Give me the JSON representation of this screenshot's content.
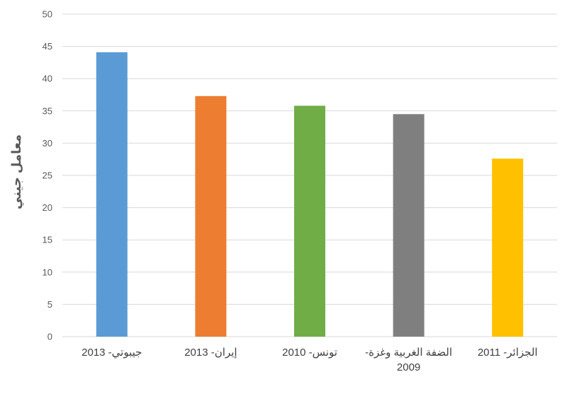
{
  "chart_data": {
    "type": "bar",
    "categories": [
      [
        "جيبوتي- 2013"
      ],
      [
        "إيران- 2013"
      ],
      [
        "تونس- 2010"
      ],
      [
        "الضفة الغربية وغزة-",
        "2009"
      ],
      [
        "الجزائر- 2011"
      ]
    ],
    "values": [
      44.1,
      37.3,
      35.8,
      34.5,
      27.6
    ],
    "colors": [
      "#5b9bd5",
      "#ed7d31",
      "#70ad47",
      "#7f7f7f",
      "#ffc000"
    ],
    "ylabel": "معامل جيني",
    "ylim": [
      0,
      50
    ],
    "yticks": [
      0,
      5,
      10,
      15,
      20,
      25,
      30,
      35,
      40,
      45,
      50
    ],
    "grid": true,
    "gridColor": "#d9d9d9"
  }
}
